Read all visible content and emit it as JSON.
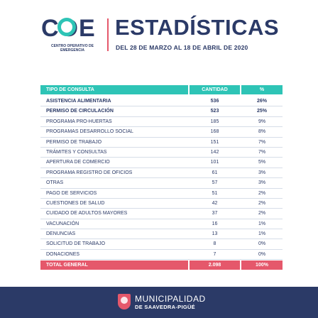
{
  "header": {
    "logo_text": "COE",
    "logo_subtitle": "CENTRO OPERATIVO DE EMERGENCIA",
    "title": "ESTADÍSTICAS",
    "subtitle": "DEL 28 DE MARZO AL 18 DE ABRIL DE 2020"
  },
  "table": {
    "headers": {
      "type": "TIPO DE CONSULTA",
      "quantity": "CANTIDAD",
      "percent": "%"
    },
    "rows": [
      {
        "name": "ASISTENCIA ALIMENTARIA",
        "quantity": "536",
        "percent": "26%",
        "bold": true
      },
      {
        "name": "PERMISO DE CIRCULACIÓN",
        "quantity": "523",
        "percent": "25%",
        "bold": true
      },
      {
        "name": "PROGRAMA PRO-HUERTAS",
        "quantity": "185",
        "percent": "9%"
      },
      {
        "name": "PROGRAMAS DESARROLLO SOCIAL",
        "quantity": "168",
        "percent": "8%"
      },
      {
        "name": "PERMISO DE TRABAJO",
        "quantity": "151",
        "percent": "7%"
      },
      {
        "name": "TRÁMITES Y CONSULTAS",
        "quantity": "142",
        "percent": "7%"
      },
      {
        "name": "APERTURA DE COMERCIO",
        "quantity": "101",
        "percent": "5%"
      },
      {
        "name": "PROGRAMA REGISTRO DE OFICIOS",
        "quantity": "61",
        "percent": "3%"
      },
      {
        "name": "OTRAS",
        "quantity": "57",
        "percent": "3%"
      },
      {
        "name": "PAGO DE SERVICIOS",
        "quantity": "51",
        "percent": "2%"
      },
      {
        "name": "CUESTIONES DE SALUD",
        "quantity": "42",
        "percent": "2%"
      },
      {
        "name": "CUIDADO DE ADULTOS MAYORES",
        "quantity": "37",
        "percent": "2%"
      },
      {
        "name": "VACUNACIÓN",
        "quantity": "16",
        "percent": "1%"
      },
      {
        "name": "DENUNCIAS",
        "quantity": "13",
        "percent": "1%"
      },
      {
        "name": "SOLICITUD DE TRABAJO",
        "quantity": "8",
        "percent": "0%"
      },
      {
        "name": "DONACIONES",
        "quantity": "7",
        "percent": "0%"
      }
    ],
    "total": {
      "name": "TOTAL GENERAL",
      "quantity": "2.098",
      "percent": "100%"
    }
  },
  "footer": {
    "line1": "MUNICIPALIDAD",
    "line2_prefix": "DE",
    "line2": "SAAVEDRA-PIGÜÉ"
  },
  "colors": {
    "navy": "#2b3a67",
    "teal": "#2ec4b6",
    "coral": "#e5586b"
  }
}
